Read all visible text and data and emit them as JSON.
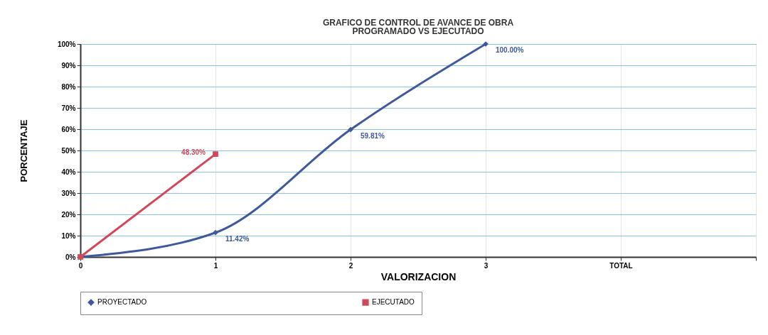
{
  "chart_data": {
    "type": "line",
    "title": "GRAFICO DE CONTROL DE AVANCE DE OBRA",
    "subtitle": "PROGRAMADO  VS  EJECUTADO",
    "xlabel": "VALORIZACION",
    "ylabel": "PORCENTAJE",
    "categories": [
      "0",
      "1",
      "2",
      "3",
      "TOTAL",
      null
    ],
    "series": [
      {
        "name": "PROYECTADO",
        "color": "#3f5a9a",
        "marker": "diamond",
        "values": [
          0,
          11.42,
          59.81,
          100,
          null,
          null
        ],
        "value_labels": [
          null,
          "11.42%",
          "59.81%",
          "100.00%",
          null,
          null
        ]
      },
      {
        "name": "EJECUTADO",
        "color": "#d0485a",
        "marker": "square",
        "values": [
          0,
          48.3,
          null,
          null,
          null,
          null
        ],
        "value_labels": [
          null,
          "48.30%",
          null,
          null,
          null,
          null
        ]
      }
    ],
    "ylim": [
      0,
      100
    ],
    "yticks": [
      {
        "value": 0,
        "label": "0%"
      },
      {
        "value": 10,
        "label": "10%"
      },
      {
        "value": 20,
        "label": "20%"
      },
      {
        "value": 30,
        "label": "30%"
      },
      {
        "value": 40,
        "label": "40%"
      },
      {
        "value": 50,
        "label": "50%"
      },
      {
        "value": 60,
        "label": "60%"
      },
      {
        "value": 70,
        "label": "70%"
      },
      {
        "value": 80,
        "label": "80%"
      },
      {
        "value": 90,
        "label": "90%"
      },
      {
        "value": 100,
        "label": "100%"
      }
    ],
    "grid": true,
    "legend": "bottom",
    "line_style": "solid"
  }
}
